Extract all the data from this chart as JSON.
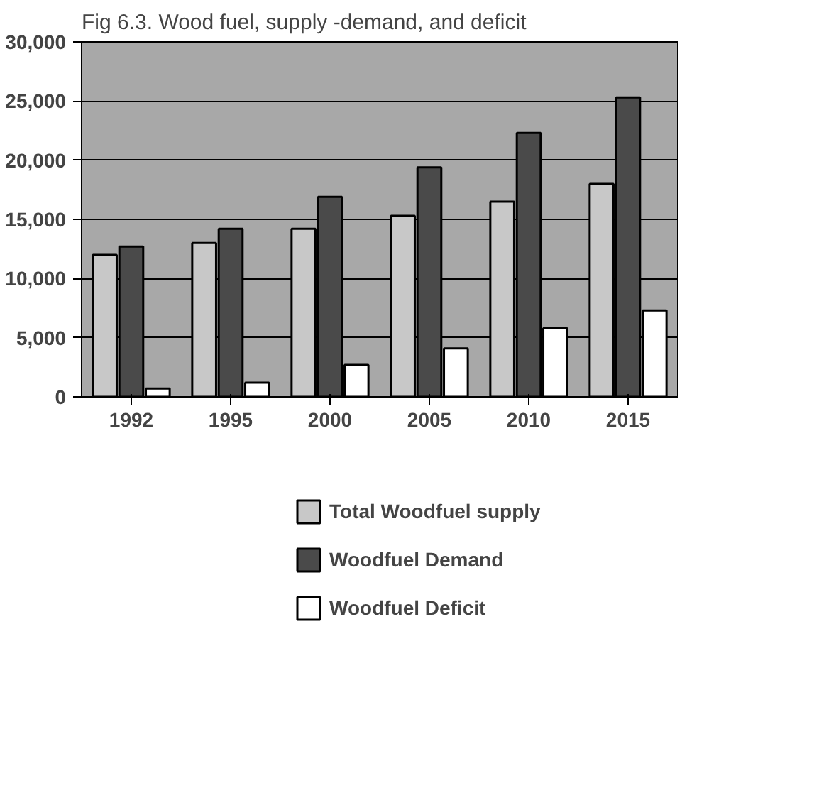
{
  "chart_data": {
    "type": "bar",
    "title": "Fig 6.3. Wood fuel, supply -demand, and deficit",
    "categories": [
      "1992",
      "1995",
      "2000",
      "2005",
      "2010",
      "2015"
    ],
    "series": [
      {
        "name": "Total Woodfuel supply",
        "color": "#c8c8c8",
        "values": [
          12000,
          13000,
          14200,
          15300,
          16500,
          18000
        ]
      },
      {
        "name": "Woodfuel Demand",
        "color": "#4a4a4a",
        "values": [
          12700,
          14200,
          16900,
          19400,
          22300,
          25300
        ]
      },
      {
        "name": "Woodfuel Deficit",
        "color": "#ffffff",
        "values": [
          700,
          1200,
          2700,
          4100,
          5800,
          7300
        ]
      }
    ],
    "ylim": [
      0,
      30000
    ],
    "yticks": [
      {
        "value": 0,
        "label": "0"
      },
      {
        "value": 5000,
        "label": "5,000"
      },
      {
        "value": 10000,
        "label": "10,000"
      },
      {
        "value": 15000,
        "label": "15,000"
      },
      {
        "value": 20000,
        "label": "20,000"
      },
      {
        "value": 25000,
        "label": "25,000"
      },
      {
        "value": 30000,
        "label": "30,000"
      }
    ],
    "grid": "y",
    "legend": "bottom"
  }
}
